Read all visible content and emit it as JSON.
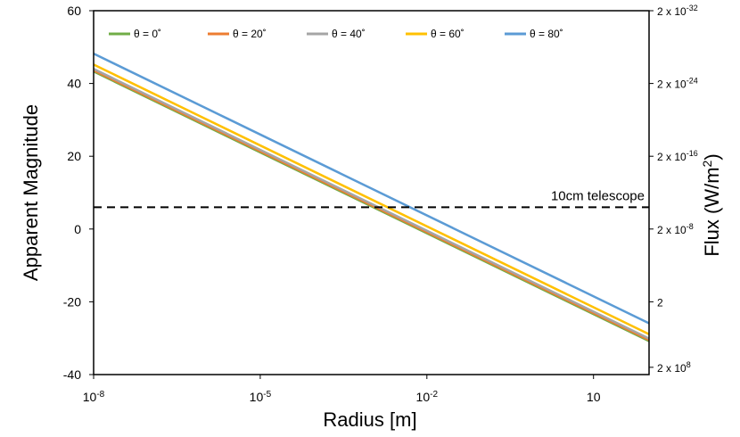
{
  "chart_data": {
    "type": "line",
    "title": "",
    "xlabel": "Radius [m]",
    "ylabel": "Apparent Magnitude",
    "y2label_prefix": "Flux (W/m",
    "y2label_sup": "2",
    "y2label_suffix": ")",
    "xscale": "log",
    "xlim_log10": [
      -8,
      2
    ],
    "ylim": [
      -40,
      60
    ],
    "x_ticks": [
      {
        "log": -8,
        "base": "10",
        "exp": "-8"
      },
      {
        "log": -5,
        "base": "10",
        "exp": "-5"
      },
      {
        "log": -2,
        "base": "10",
        "exp": "-2"
      },
      {
        "log": 1,
        "base": "10",
        "exp": ""
      }
    ],
    "y_ticks": [
      -40,
      -20,
      0,
      20,
      40,
      60
    ],
    "y2_ticks": [
      {
        "mag": 60,
        "base": "2 x 10",
        "exp": "-32"
      },
      {
        "mag": 40,
        "base": "2 x 10",
        "exp": "-24"
      },
      {
        "mag": 20,
        "base": "2 x 10",
        "exp": "-16"
      },
      {
        "mag": 0,
        "base": "2 x 10",
        "exp": "-8"
      },
      {
        "mag": -20,
        "base": "2",
        "exp": ""
      },
      {
        "mag": -38,
        "base": "2 x 10",
        "exp": "8"
      }
    ],
    "reference_line": {
      "label": "10cm telescope",
      "y": 6
    },
    "legend_position": "top-left",
    "series": [
      {
        "name": "θ = 0˚",
        "color": "#70ad47",
        "x_log10": [
          -8,
          2
        ],
        "y": [
          43.3,
          -30.8
        ]
      },
      {
        "name": "θ = 20˚",
        "color": "#ed7d31",
        "x_log10": [
          -8,
          2
        ],
        "y": [
          43.6,
          -30.5
        ]
      },
      {
        "name": "θ = 40˚",
        "color": "#a5a5a5",
        "x_log10": [
          -8,
          2
        ],
        "y": [
          44.0,
          -30.1
        ]
      },
      {
        "name": "θ = 60˚",
        "color": "#ffc000",
        "x_log10": [
          -8,
          2
        ],
        "y": [
          45.2,
          -28.9
        ]
      },
      {
        "name": "θ = 80˚",
        "color": "#5b9bd5",
        "x_log10": [
          -8,
          2
        ],
        "y": [
          48.2,
          -25.9
        ]
      }
    ]
  }
}
